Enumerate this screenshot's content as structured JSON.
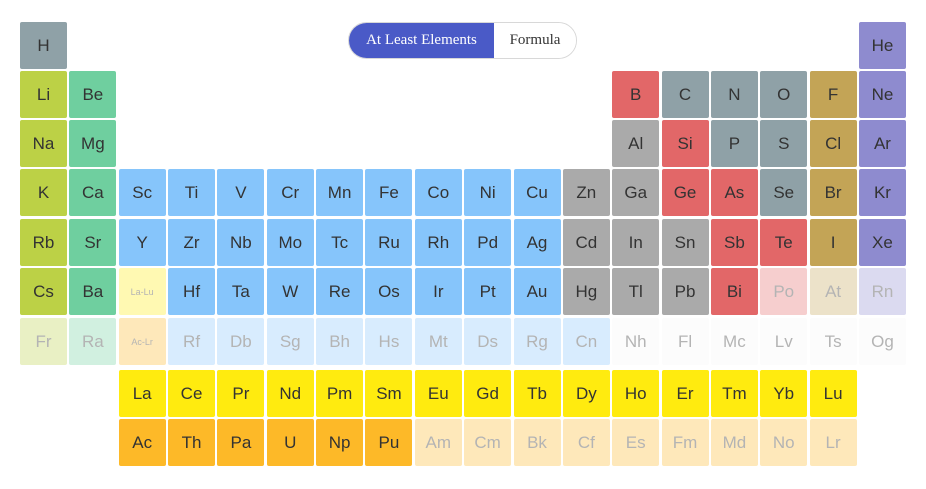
{
  "toggle": {
    "active_label": "At Least Elements",
    "inactive_label": "Formula"
  },
  "colors": {
    "hydrogen": "#8fa1a7",
    "noble-gas": "#8e8bcf",
    "alkali-metal": "#bcd146",
    "alkaline-earth": "#6fcf9f",
    "transition-metal": "#86c5fb",
    "post-transition": "#aaaaaa",
    "metalloid": "#e26768",
    "nonmetal": "#8fa1a7",
    "halogen": "#c3a456",
    "lanthanide": "#ffeb0f",
    "actinide": "#fdb928",
    "unknown": "#ffffff"
  },
  "elements": [
    {
      "symbol": "H",
      "row": 0,
      "col": 0,
      "cat": "hydrogen"
    },
    {
      "symbol": "He",
      "row": 0,
      "col": 17,
      "cat": "noble-gas"
    },
    {
      "symbol": "Li",
      "row": 1,
      "col": 0,
      "cat": "alkali-metal"
    },
    {
      "symbol": "Be",
      "row": 1,
      "col": 1,
      "cat": "alkaline-earth"
    },
    {
      "symbol": "B",
      "row": 1,
      "col": 12,
      "cat": "metalloid"
    },
    {
      "symbol": "C",
      "row": 1,
      "col": 13,
      "cat": "nonmetal"
    },
    {
      "symbol": "N",
      "row": 1,
      "col": 14,
      "cat": "nonmetal"
    },
    {
      "symbol": "O",
      "row": 1,
      "col": 15,
      "cat": "nonmetal"
    },
    {
      "symbol": "F",
      "row": 1,
      "col": 16,
      "cat": "halogen"
    },
    {
      "symbol": "Ne",
      "row": 1,
      "col": 17,
      "cat": "noble-gas"
    },
    {
      "symbol": "Na",
      "row": 2,
      "col": 0,
      "cat": "alkali-metal"
    },
    {
      "symbol": "Mg",
      "row": 2,
      "col": 1,
      "cat": "alkaline-earth"
    },
    {
      "symbol": "Al",
      "row": 2,
      "col": 12,
      "cat": "post-transition"
    },
    {
      "symbol": "Si",
      "row": 2,
      "col": 13,
      "cat": "metalloid"
    },
    {
      "symbol": "P",
      "row": 2,
      "col": 14,
      "cat": "nonmetal"
    },
    {
      "symbol": "S",
      "row": 2,
      "col": 15,
      "cat": "nonmetal"
    },
    {
      "symbol": "Cl",
      "row": 2,
      "col": 16,
      "cat": "halogen"
    },
    {
      "symbol": "Ar",
      "row": 2,
      "col": 17,
      "cat": "noble-gas"
    },
    {
      "symbol": "K",
      "row": 3,
      "col": 0,
      "cat": "alkali-metal"
    },
    {
      "symbol": "Ca",
      "row": 3,
      "col": 1,
      "cat": "alkaline-earth"
    },
    {
      "symbol": "Sc",
      "row": 3,
      "col": 2,
      "cat": "transition-metal"
    },
    {
      "symbol": "Ti",
      "row": 3,
      "col": 3,
      "cat": "transition-metal"
    },
    {
      "symbol": "V",
      "row": 3,
      "col": 4,
      "cat": "transition-metal"
    },
    {
      "symbol": "Cr",
      "row": 3,
      "col": 5,
      "cat": "transition-metal"
    },
    {
      "symbol": "Mn",
      "row": 3,
      "col": 6,
      "cat": "transition-metal"
    },
    {
      "symbol": "Fe",
      "row": 3,
      "col": 7,
      "cat": "transition-metal"
    },
    {
      "symbol": "Co",
      "row": 3,
      "col": 8,
      "cat": "transition-metal"
    },
    {
      "symbol": "Ni",
      "row": 3,
      "col": 9,
      "cat": "transition-metal"
    },
    {
      "symbol": "Cu",
      "row": 3,
      "col": 10,
      "cat": "transition-metal"
    },
    {
      "symbol": "Zn",
      "row": 3,
      "col": 11,
      "cat": "post-transition"
    },
    {
      "symbol": "Ga",
      "row": 3,
      "col": 12,
      "cat": "post-transition"
    },
    {
      "symbol": "Ge",
      "row": 3,
      "col": 13,
      "cat": "metalloid"
    },
    {
      "symbol": "As",
      "row": 3,
      "col": 14,
      "cat": "metalloid"
    },
    {
      "symbol": "Se",
      "row": 3,
      "col": 15,
      "cat": "nonmetal"
    },
    {
      "symbol": "Br",
      "row": 3,
      "col": 16,
      "cat": "halogen"
    },
    {
      "symbol": "Kr",
      "row": 3,
      "col": 17,
      "cat": "noble-gas"
    },
    {
      "symbol": "Rb",
      "row": 4,
      "col": 0,
      "cat": "alkali-metal"
    },
    {
      "symbol": "Sr",
      "row": 4,
      "col": 1,
      "cat": "alkaline-earth"
    },
    {
      "symbol": "Y",
      "row": 4,
      "col": 2,
      "cat": "transition-metal"
    },
    {
      "symbol": "Zr",
      "row": 4,
      "col": 3,
      "cat": "transition-metal"
    },
    {
      "symbol": "Nb",
      "row": 4,
      "col": 4,
      "cat": "transition-metal"
    },
    {
      "symbol": "Mo",
      "row": 4,
      "col": 5,
      "cat": "transition-metal"
    },
    {
      "symbol": "Tc",
      "row": 4,
      "col": 6,
      "cat": "transition-metal"
    },
    {
      "symbol": "Ru",
      "row": 4,
      "col": 7,
      "cat": "transition-metal"
    },
    {
      "symbol": "Rh",
      "row": 4,
      "col": 8,
      "cat": "transition-metal"
    },
    {
      "symbol": "Pd",
      "row": 4,
      "col": 9,
      "cat": "transition-metal"
    },
    {
      "symbol": "Ag",
      "row": 4,
      "col": 10,
      "cat": "transition-metal"
    },
    {
      "symbol": "Cd",
      "row": 4,
      "col": 11,
      "cat": "post-transition"
    },
    {
      "symbol": "In",
      "row": 4,
      "col": 12,
      "cat": "post-transition"
    },
    {
      "symbol": "Sn",
      "row": 4,
      "col": 13,
      "cat": "post-transition"
    },
    {
      "symbol": "Sb",
      "row": 4,
      "col": 14,
      "cat": "metalloid"
    },
    {
      "symbol": "Te",
      "row": 4,
      "col": 15,
      "cat": "metalloid"
    },
    {
      "symbol": "I",
      "row": 4,
      "col": 16,
      "cat": "halogen"
    },
    {
      "symbol": "Xe",
      "row": 4,
      "col": 17,
      "cat": "noble-gas"
    },
    {
      "symbol": "Cs",
      "row": 5,
      "col": 0,
      "cat": "alkali-metal"
    },
    {
      "symbol": "Ba",
      "row": 5,
      "col": 1,
      "cat": "alkaline-earth"
    },
    {
      "symbol": "La-Lu",
      "row": 5,
      "col": 2,
      "cat": "lanthanide",
      "faded": true,
      "small": true
    },
    {
      "symbol": "Hf",
      "row": 5,
      "col": 3,
      "cat": "transition-metal"
    },
    {
      "symbol": "Ta",
      "row": 5,
      "col": 4,
      "cat": "transition-metal"
    },
    {
      "symbol": "W",
      "row": 5,
      "col": 5,
      "cat": "transition-metal"
    },
    {
      "symbol": "Re",
      "row": 5,
      "col": 6,
      "cat": "transition-metal"
    },
    {
      "symbol": "Os",
      "row": 5,
      "col": 7,
      "cat": "transition-metal"
    },
    {
      "symbol": "Ir",
      "row": 5,
      "col": 8,
      "cat": "transition-metal"
    },
    {
      "symbol": "Pt",
      "row": 5,
      "col": 9,
      "cat": "transition-metal"
    },
    {
      "symbol": "Au",
      "row": 5,
      "col": 10,
      "cat": "transition-metal"
    },
    {
      "symbol": "Hg",
      "row": 5,
      "col": 11,
      "cat": "post-transition"
    },
    {
      "symbol": "Tl",
      "row": 5,
      "col": 12,
      "cat": "post-transition"
    },
    {
      "symbol": "Pb",
      "row": 5,
      "col": 13,
      "cat": "post-transition"
    },
    {
      "symbol": "Bi",
      "row": 5,
      "col": 14,
      "cat": "metalloid"
    },
    {
      "symbol": "Po",
      "row": 5,
      "col": 15,
      "cat": "metalloid",
      "faded": true
    },
    {
      "symbol": "At",
      "row": 5,
      "col": 16,
      "cat": "halogen",
      "faded": true
    },
    {
      "symbol": "Rn",
      "row": 5,
      "col": 17,
      "cat": "noble-gas",
      "faded": true
    },
    {
      "symbol": "Fr",
      "row": 6,
      "col": 0,
      "cat": "alkali-metal",
      "faded": true
    },
    {
      "symbol": "Ra",
      "row": 6,
      "col": 1,
      "cat": "alkaline-earth",
      "faded": true
    },
    {
      "symbol": "Ac-Lr",
      "row": 6,
      "col": 2,
      "cat": "actinide",
      "faded": true,
      "small": true
    },
    {
      "symbol": "Rf",
      "row": 6,
      "col": 3,
      "cat": "transition-metal",
      "faded": true
    },
    {
      "symbol": "Db",
      "row": 6,
      "col": 4,
      "cat": "transition-metal",
      "faded": true
    },
    {
      "symbol": "Sg",
      "row": 6,
      "col": 5,
      "cat": "transition-metal",
      "faded": true
    },
    {
      "symbol": "Bh",
      "row": 6,
      "col": 6,
      "cat": "transition-metal",
      "faded": true
    },
    {
      "symbol": "Hs",
      "row": 6,
      "col": 7,
      "cat": "transition-metal",
      "faded": true
    },
    {
      "symbol": "Mt",
      "row": 6,
      "col": 8,
      "cat": "transition-metal",
      "faded": true
    },
    {
      "symbol": "Ds",
      "row": 6,
      "col": 9,
      "cat": "transition-metal",
      "faded": true
    },
    {
      "symbol": "Rg",
      "row": 6,
      "col": 10,
      "cat": "transition-metal",
      "faded": true
    },
    {
      "symbol": "Cn",
      "row": 6,
      "col": 11,
      "cat": "transition-metal",
      "faded": true
    },
    {
      "symbol": "Nh",
      "row": 6,
      "col": 12,
      "cat": "unknown",
      "faded": true
    },
    {
      "symbol": "Fl",
      "row": 6,
      "col": 13,
      "cat": "unknown",
      "faded": true
    },
    {
      "symbol": "Mc",
      "row": 6,
      "col": 14,
      "cat": "unknown",
      "faded": true
    },
    {
      "symbol": "Lv",
      "row": 6,
      "col": 15,
      "cat": "unknown",
      "faded": true
    },
    {
      "symbol": "Ts",
      "row": 6,
      "col": 16,
      "cat": "unknown",
      "faded": true
    },
    {
      "symbol": "Og",
      "row": 6,
      "col": 17,
      "cat": "unknown",
      "faded": true
    },
    {
      "symbol": "La",
      "row": 7,
      "col": 2,
      "cat": "lanthanide"
    },
    {
      "symbol": "Ce",
      "row": 7,
      "col": 3,
      "cat": "lanthanide"
    },
    {
      "symbol": "Pr",
      "row": 7,
      "col": 4,
      "cat": "lanthanide"
    },
    {
      "symbol": "Nd",
      "row": 7,
      "col": 5,
      "cat": "lanthanide"
    },
    {
      "symbol": "Pm",
      "row": 7,
      "col": 6,
      "cat": "lanthanide"
    },
    {
      "symbol": "Sm",
      "row": 7,
      "col": 7,
      "cat": "lanthanide"
    },
    {
      "symbol": "Eu",
      "row": 7,
      "col": 8,
      "cat": "lanthanide"
    },
    {
      "symbol": "Gd",
      "row": 7,
      "col": 9,
      "cat": "lanthanide"
    },
    {
      "symbol": "Tb",
      "row": 7,
      "col": 10,
      "cat": "lanthanide"
    },
    {
      "symbol": "Dy",
      "row": 7,
      "col": 11,
      "cat": "lanthanide"
    },
    {
      "symbol": "Ho",
      "row": 7,
      "col": 12,
      "cat": "lanthanide"
    },
    {
      "symbol": "Er",
      "row": 7,
      "col": 13,
      "cat": "lanthanide"
    },
    {
      "symbol": "Tm",
      "row": 7,
      "col": 14,
      "cat": "lanthanide"
    },
    {
      "symbol": "Yb",
      "row": 7,
      "col": 15,
      "cat": "lanthanide"
    },
    {
      "symbol": "Lu",
      "row": 7,
      "col": 16,
      "cat": "lanthanide"
    },
    {
      "symbol": "Ac",
      "row": 8,
      "col": 2,
      "cat": "actinide"
    },
    {
      "symbol": "Th",
      "row": 8,
      "col": 3,
      "cat": "actinide"
    },
    {
      "symbol": "Pa",
      "row": 8,
      "col": 4,
      "cat": "actinide"
    },
    {
      "symbol": "U",
      "row": 8,
      "col": 5,
      "cat": "actinide"
    },
    {
      "symbol": "Np",
      "row": 8,
      "col": 6,
      "cat": "actinide"
    },
    {
      "symbol": "Pu",
      "row": 8,
      "col": 7,
      "cat": "actinide"
    },
    {
      "symbol": "Am",
      "row": 8,
      "col": 8,
      "cat": "actinide",
      "faded": true
    },
    {
      "symbol": "Cm",
      "row": 8,
      "col": 9,
      "cat": "actinide",
      "faded": true
    },
    {
      "symbol": "Bk",
      "row": 8,
      "col": 10,
      "cat": "actinide",
      "faded": true
    },
    {
      "symbol": "Cf",
      "row": 8,
      "col": 11,
      "cat": "actinide",
      "faded": true
    },
    {
      "symbol": "Es",
      "row": 8,
      "col": 12,
      "cat": "actinide",
      "faded": true
    },
    {
      "symbol": "Fm",
      "row": 8,
      "col": 13,
      "cat": "actinide",
      "faded": true
    },
    {
      "symbol": "Md",
      "row": 8,
      "col": 14,
      "cat": "actinide",
      "faded": true
    },
    {
      "symbol": "No",
      "row": 8,
      "col": 15,
      "cat": "actinide",
      "faded": true
    },
    {
      "symbol": "Lr",
      "row": 8,
      "col": 16,
      "cat": "actinide",
      "faded": true
    }
  ]
}
